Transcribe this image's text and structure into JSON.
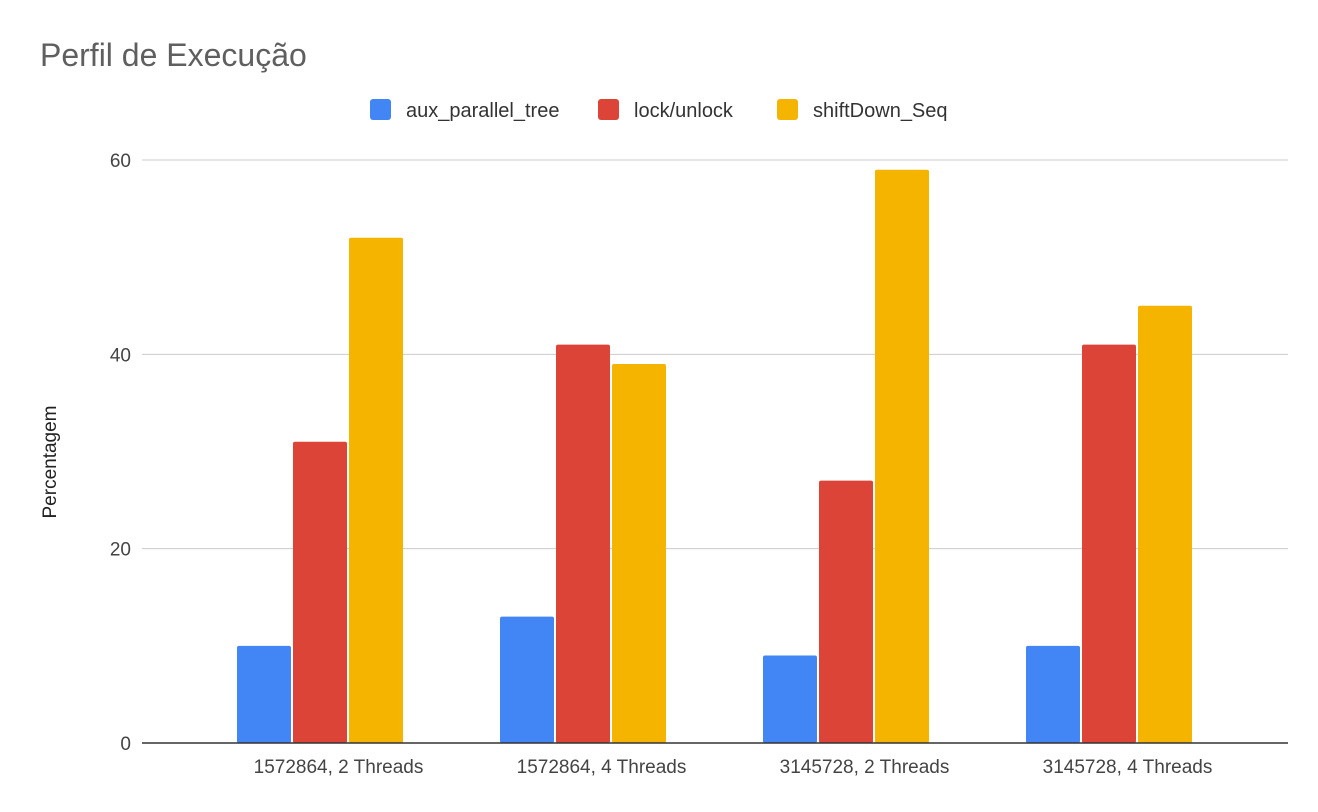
{
  "chart_data": {
    "type": "bar",
    "title": "Perfil de Execução",
    "xlabel": "",
    "ylabel": "Percentagem",
    "categories": [
      "1572864, 2 Threads",
      "1572864, 4 Threads",
      "3145728, 2 Threads",
      "3145728, 4 Threads"
    ],
    "series": [
      {
        "name": "aux_parallel_tree",
        "color": "#4285f4",
        "values": [
          10,
          13,
          9,
          10
        ]
      },
      {
        "name": "lock/unlock",
        "color": "#db4437",
        "values": [
          31,
          41,
          27,
          41
        ]
      },
      {
        "name": "shiftDown_Seq",
        "color": "#f4b400",
        "values": [
          52,
          39,
          59,
          45
        ]
      }
    ],
    "ylim": [
      0,
      60
    ],
    "yticks": [
      0,
      20,
      40,
      60
    ],
    "grid": true,
    "legend_position": "top"
  }
}
